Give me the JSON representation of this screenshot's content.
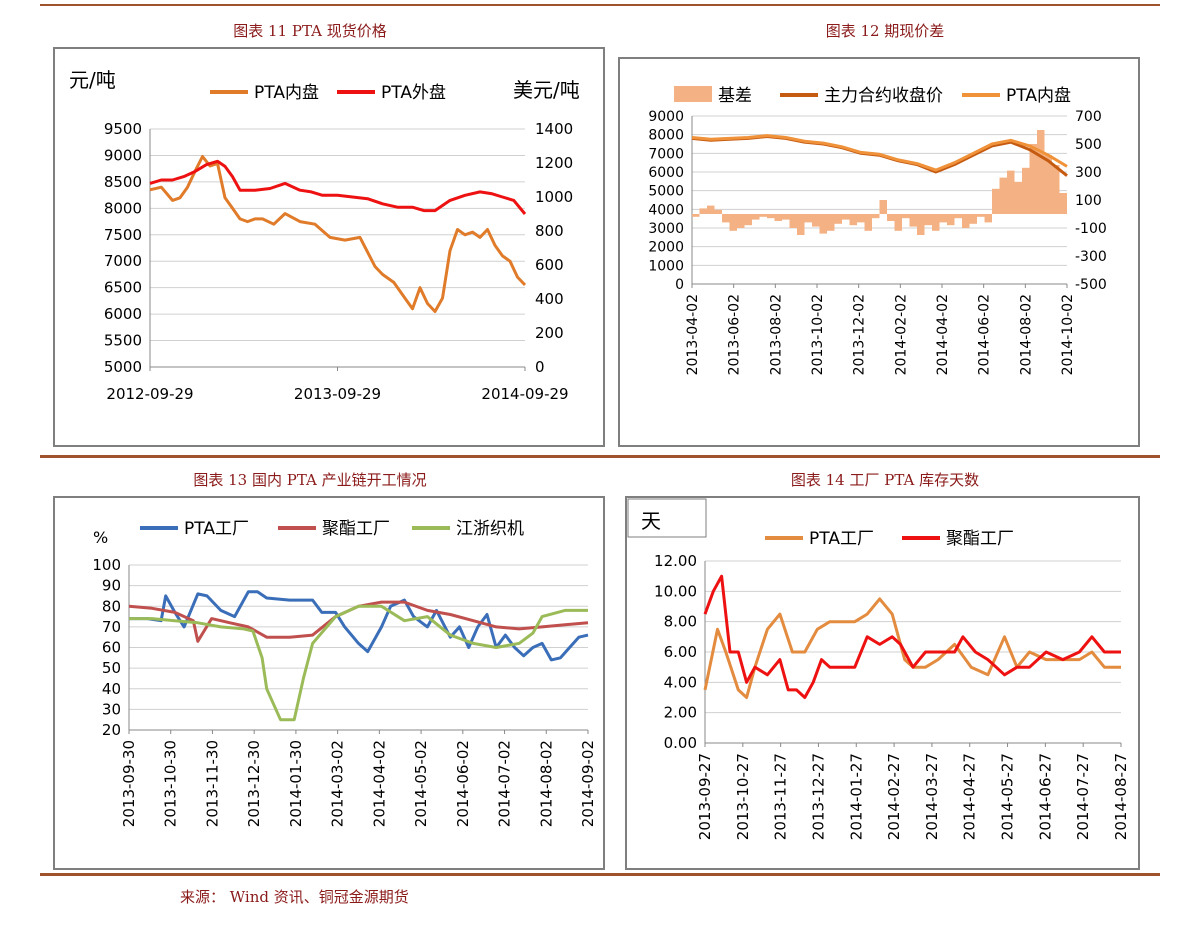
{
  "figures": {
    "f11": "图表 11 PTA 现货价格",
    "f12": "图表 12 期现价差",
    "f13": "图表 13 国内 PTA 产业链开工情况",
    "f14": "图表 14 工厂 PTA 库存天数"
  },
  "source": "来源： Wind 资讯、铜冠金源期货",
  "chart_data": [
    {
      "id": "c11",
      "type": "line",
      "ylabel": "元/吨",
      "y2label": "美元/吨",
      "ylim": [
        5000,
        9500
      ],
      "y2lim": [
        0,
        1400
      ],
      "yticks": [
        5000,
        5500,
        6000,
        6500,
        7000,
        7500,
        8000,
        8500,
        9000,
        9500
      ],
      "y2ticks": [
        0,
        200,
        400,
        600,
        800,
        1000,
        1200,
        1400
      ],
      "xticks": [
        "2012-09-29",
        "2013-09-29",
        "2014-09-29"
      ],
      "xtick_pos": [
        0,
        0.5,
        1
      ],
      "legend": "top",
      "series": [
        {
          "name": "PTA内盘",
          "color": "#e07b2a",
          "axis": "left",
          "x": [
            0,
            0.03,
            0.06,
            0.08,
            0.1,
            0.12,
            0.14,
            0.16,
            0.18,
            0.2,
            0.22,
            0.24,
            0.26,
            0.28,
            0.3,
            0.33,
            0.36,
            0.4,
            0.44,
            0.48,
            0.52,
            0.56,
            0.6,
            0.62,
            0.65,
            0.68,
            0.7,
            0.72,
            0.74,
            0.76,
            0.78,
            0.8,
            0.82,
            0.84,
            0.86,
            0.88,
            0.9,
            0.92,
            0.94,
            0.96,
            0.98,
            1.0
          ],
          "y": [
            8350,
            8400,
            8150,
            8200,
            8400,
            8700,
            8980,
            8800,
            8850,
            8200,
            8000,
            7800,
            7750,
            7800,
            7800,
            7700,
            7900,
            7750,
            7700,
            7450,
            7400,
            7450,
            6900,
            6750,
            6600,
            6300,
            6100,
            6500,
            6200,
            6050,
            6300,
            7200,
            7600,
            7500,
            7550,
            7450,
            7600,
            7300,
            7100,
            7000,
            6700,
            6550
          ]
        },
        {
          "name": "PTA外盘",
          "color": "#ee1111",
          "axis": "right",
          "x": [
            0,
            0.03,
            0.06,
            0.09,
            0.12,
            0.15,
            0.18,
            0.2,
            0.22,
            0.24,
            0.28,
            0.32,
            0.36,
            0.4,
            0.43,
            0.46,
            0.5,
            0.54,
            0.58,
            0.62,
            0.66,
            0.7,
            0.73,
            0.76,
            0.8,
            0.84,
            0.88,
            0.91,
            0.94,
            0.97,
            1.0
          ],
          "y": [
            1080,
            1100,
            1100,
            1120,
            1150,
            1190,
            1210,
            1180,
            1120,
            1040,
            1040,
            1050,
            1080,
            1040,
            1030,
            1010,
            1010,
            1000,
            990,
            960,
            940,
            940,
            920,
            920,
            980,
            1010,
            1030,
            1020,
            1000,
            980,
            900
          ]
        }
      ]
    },
    {
      "id": "c12",
      "type": "line",
      "ylim": [
        0,
        9000
      ],
      "y2lim": [
        -500,
        700
      ],
      "yticks": [
        0,
        1000,
        2000,
        3000,
        4000,
        5000,
        6000,
        7000,
        8000,
        9000
      ],
      "y2ticks": [
        -500,
        -300,
        -100,
        100,
        300,
        500,
        700
      ],
      "xticks": [
        "2013-04-02",
        "2013-06-02",
        "2013-08-02",
        "2013-10-02",
        "2013-12-02",
        "2014-02-02",
        "2014-04-02",
        "2014-06-02",
        "2014-08-02",
        "2014-10-02"
      ],
      "legend": "top",
      "series": [
        {
          "name": "基差",
          "type": "area",
          "color": "#f4b183",
          "axis": "right",
          "x": [
            0,
            0.02,
            0.04,
            0.06,
            0.08,
            0.1,
            0.12,
            0.14,
            0.16,
            0.18,
            0.2,
            0.22,
            0.24,
            0.26,
            0.28,
            0.3,
            0.32,
            0.34,
            0.36,
            0.38,
            0.4,
            0.42,
            0.44,
            0.46,
            0.48,
            0.5,
            0.52,
            0.54,
            0.56,
            0.58,
            0.6,
            0.62,
            0.64,
            0.66,
            0.68,
            0.7,
            0.72,
            0.74,
            0.76,
            0.78,
            0.8,
            0.82,
            0.84,
            0.86,
            0.88,
            0.9,
            0.92,
            0.94,
            0.96,
            0.98,
            1.0
          ],
          "y": [
            -20,
            40,
            60,
            30,
            -60,
            -120,
            -100,
            -80,
            -40,
            -20,
            -30,
            -50,
            -40,
            -100,
            -150,
            -60,
            -90,
            -140,
            -120,
            -70,
            -40,
            -80,
            -60,
            -120,
            -30,
            100,
            -50,
            -120,
            -30,
            -90,
            -150,
            -80,
            -120,
            -60,
            -80,
            -30,
            -100,
            -70,
            -20,
            -60,
            180,
            260,
            310,
            230,
            330,
            500,
            600,
            420,
            350,
            150,
            60
          ]
        },
        {
          "name": "主力合约收盘价",
          "color": "#c55a11",
          "axis": "left",
          "x": [
            0,
            0.05,
            0.1,
            0.15,
            0.2,
            0.25,
            0.3,
            0.35,
            0.4,
            0.45,
            0.5,
            0.55,
            0.6,
            0.65,
            0.7,
            0.75,
            0.8,
            0.85,
            0.9,
            0.95,
            1.0
          ],
          "y": [
            7800,
            7700,
            7750,
            7800,
            7900,
            7800,
            7600,
            7500,
            7300,
            7000,
            6900,
            6600,
            6400,
            6000,
            6400,
            6900,
            7400,
            7600,
            7200,
            6600,
            5800
          ]
        },
        {
          "name": "PTA内盘",
          "color": "#f0923a",
          "axis": "left",
          "x": [
            0,
            0.05,
            0.1,
            0.15,
            0.2,
            0.25,
            0.3,
            0.35,
            0.4,
            0.45,
            0.5,
            0.55,
            0.6,
            0.65,
            0.7,
            0.75,
            0.8,
            0.85,
            0.9,
            0.95,
            1.0
          ],
          "y": [
            7850,
            7750,
            7800,
            7850,
            7950,
            7850,
            7650,
            7550,
            7350,
            7050,
            6950,
            6650,
            6450,
            6100,
            6500,
            7000,
            7500,
            7700,
            7400,
            6900,
            6300
          ]
        }
      ]
    },
    {
      "id": "c13",
      "type": "line",
      "ylabel": "%",
      "ylim": [
        20,
        100
      ],
      "yticks": [
        20,
        30,
        40,
        50,
        60,
        70,
        80,
        90,
        100
      ],
      "xticks": [
        "2013-09-30",
        "2013-10-30",
        "2013-11-30",
        "2013-12-30",
        "2014-01-30",
        "2014-03-02",
        "2014-04-02",
        "2014-05-02",
        "2014-06-02",
        "2014-07-02",
        "2014-08-02",
        "2014-09-02"
      ],
      "legend": "top",
      "series": [
        {
          "name": "PTA工厂",
          "color": "#3a6eb8",
          "x": [
            0,
            0.04,
            0.07,
            0.08,
            0.1,
            0.12,
            0.15,
            0.17,
            0.2,
            0.23,
            0.26,
            0.28,
            0.3,
            0.35,
            0.4,
            0.42,
            0.45,
            0.47,
            0.5,
            0.52,
            0.55,
            0.57,
            0.6,
            0.62,
            0.65,
            0.67,
            0.7,
            0.72,
            0.74,
            0.76,
            0.78,
            0.8,
            0.82,
            0.84,
            0.86,
            0.88,
            0.9,
            0.92,
            0.94,
            0.96,
            0.98,
            1.0
          ],
          "y": [
            74,
            74,
            73,
            85,
            77,
            70,
            86,
            85,
            78,
            75,
            87,
            87,
            84,
            83,
            83,
            77,
            77,
            70,
            62,
            58,
            70,
            80,
            83,
            75,
            70,
            78,
            65,
            70,
            60,
            70,
            76,
            60,
            66,
            60,
            56,
            60,
            62,
            54,
            55,
            60,
            65,
            66
          ]
        },
        {
          "name": "聚酯工厂",
          "color": "#c0504d",
          "x": [
            0,
            0.05,
            0.1,
            0.14,
            0.15,
            0.18,
            0.22,
            0.26,
            0.3,
            0.35,
            0.4,
            0.45,
            0.5,
            0.55,
            0.6,
            0.65,
            0.7,
            0.75,
            0.8,
            0.85,
            0.9,
            0.95,
            1.0
          ],
          "y": [
            80,
            79,
            77,
            73,
            63,
            74,
            72,
            70,
            65,
            65,
            66,
            75,
            80,
            82,
            82,
            78,
            76,
            73,
            70,
            69,
            70,
            71,
            72
          ]
        },
        {
          "name": "江浙织机",
          "color": "#9bbb59",
          "x": [
            0,
            0.05,
            0.1,
            0.15,
            0.2,
            0.25,
            0.27,
            0.29,
            0.3,
            0.33,
            0.36,
            0.38,
            0.4,
            0.45,
            0.5,
            0.55,
            0.6,
            0.65,
            0.7,
            0.75,
            0.8,
            0.85,
            0.88,
            0.9,
            0.95,
            1.0
          ],
          "y": [
            74,
            74,
            73,
            72,
            70,
            69,
            68,
            55,
            40,
            25,
            25,
            45,
            62,
            75,
            80,
            80,
            73,
            75,
            66,
            62,
            60,
            62,
            67,
            75,
            78,
            78
          ]
        }
      ]
    },
    {
      "id": "c14",
      "type": "line",
      "ylabel": "天",
      "ylim": [
        0,
        12
      ],
      "yticks": [
        "0.00",
        "2.00",
        "4.00",
        "6.00",
        "8.00",
        "10.00",
        "12.00"
      ],
      "xticks": [
        "2013-09-27",
        "2013-10-27",
        "2013-11-27",
        "2013-12-27",
        "2014-01-27",
        "2014-02-27",
        "2014-03-27",
        "2014-04-27",
        "2014-05-27",
        "2014-06-27",
        "2014-07-27",
        "2014-08-27"
      ],
      "legend": "top",
      "series": [
        {
          "name": "PTA工厂",
          "color": "#e38b3f",
          "x": [
            0,
            0.03,
            0.05,
            0.08,
            0.1,
            0.12,
            0.15,
            0.18,
            0.21,
            0.24,
            0.27,
            0.3,
            0.33,
            0.36,
            0.39,
            0.42,
            0.45,
            0.48,
            0.5,
            0.53,
            0.56,
            0.6,
            0.64,
            0.68,
            0.72,
            0.75,
            0.78,
            0.82,
            0.86,
            0.9,
            0.93,
            0.96,
            1.0
          ],
          "y": [
            3.5,
            7.5,
            6.0,
            3.5,
            3.0,
            5.0,
            7.5,
            8.5,
            6.0,
            6.0,
            7.5,
            8.0,
            8.0,
            8.0,
            8.5,
            9.5,
            8.5,
            5.5,
            5.0,
            5.0,
            5.5,
            6.5,
            5.0,
            4.5,
            7.0,
            5.0,
            6.0,
            5.5,
            5.5,
            5.5,
            6.0,
            5.0,
            5.0
          ]
        },
        {
          "name": "聚酯工厂",
          "color": "#ee1111",
          "x": [
            0,
            0.02,
            0.04,
            0.06,
            0.08,
            0.1,
            0.12,
            0.15,
            0.18,
            0.2,
            0.22,
            0.24,
            0.26,
            0.28,
            0.3,
            0.33,
            0.36,
            0.39,
            0.42,
            0.45,
            0.47,
            0.5,
            0.53,
            0.56,
            0.6,
            0.62,
            0.65,
            0.68,
            0.7,
            0.72,
            0.75,
            0.78,
            0.82,
            0.86,
            0.9,
            0.93,
            0.96,
            1.0
          ],
          "y": [
            8.5,
            10.0,
            11.0,
            6.0,
            6.0,
            4.0,
            5.0,
            4.5,
            5.5,
            3.5,
            3.5,
            3.0,
            4.0,
            5.5,
            5.0,
            5.0,
            5.0,
            7.0,
            6.5,
            7.0,
            6.5,
            5.0,
            6.0,
            6.0,
            6.0,
            7.0,
            6.0,
            5.5,
            5.0,
            4.5,
            5.0,
            5.0,
            6.0,
            5.5,
            6.0,
            7.0,
            6.0,
            6.0
          ]
        }
      ]
    }
  ]
}
